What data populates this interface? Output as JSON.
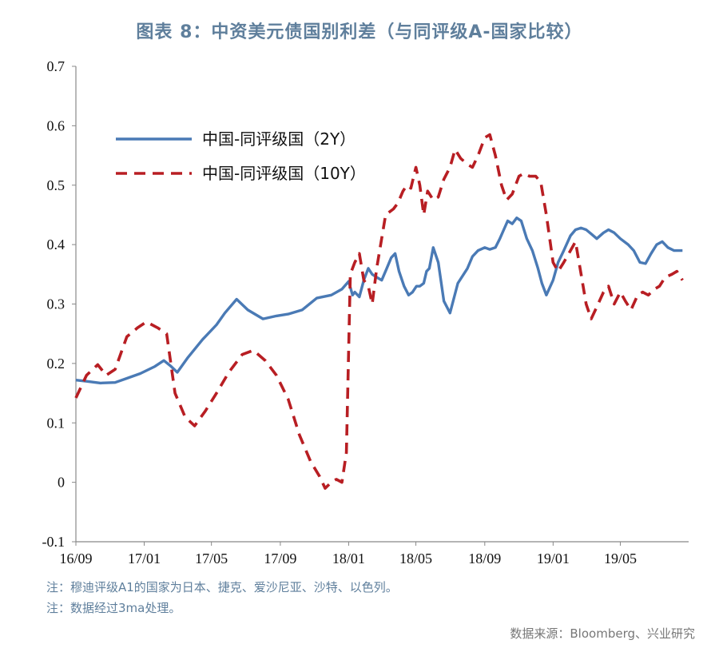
{
  "title": "图表 8：中资美元债国别利差（与同评级A-国家比较）",
  "notes": [
    "注：穆迪评级A1的国家为日本、捷克、爱沙尼亚、沙特、以色列。",
    "注：数据经过3ma处理。"
  ],
  "source": "数据来源：Bloomberg、兴业研究",
  "colors": {
    "series_2y": "#4a7ab5",
    "series_10y": "#b81e23",
    "title": "#5f7f9c"
  },
  "chart_data": {
    "type": "line",
    "title": "图表 8：中资美元债国别利差（与同评级A-国家比较）",
    "xlabel": "",
    "ylabel": "",
    "ylim": [
      -0.1,
      0.7
    ],
    "xlim": [
      "2016-09-01",
      "2019-08-31"
    ],
    "y_ticks": [
      "-0.1",
      "0",
      "0.1",
      "0.2",
      "0.3",
      "0.4",
      "0.5",
      "0.6",
      "0.7"
    ],
    "x_ticks": [
      {
        "label": "16/09",
        "date": "2016-09-01"
      },
      {
        "label": "17/01",
        "date": "2017-01-01"
      },
      {
        "label": "17/05",
        "date": "2017-05-01"
      },
      {
        "label": "17/09",
        "date": "2017-09-01"
      },
      {
        "label": "18/01",
        "date": "2018-01-01"
      },
      {
        "label": "18/05",
        "date": "2018-05-01"
      },
      {
        "label": "18/09",
        "date": "2018-09-01"
      },
      {
        "label": "19/01",
        "date": "2019-01-01"
      },
      {
        "label": "19/05",
        "date": "2019-05-01"
      }
    ],
    "grid": false,
    "legend_position": "top-left",
    "series": [
      {
        "name": "中国-同评级国（2Y）",
        "style": "solid",
        "x": [
          "2016-09-01",
          "2016-09-20",
          "2016-10-15",
          "2016-11-10",
          "2016-12-01",
          "2016-12-25",
          "2017-01-20",
          "2017-02-05",
          "2017-02-18",
          "2017-03-01",
          "2017-03-20",
          "2017-04-15",
          "2017-05-10",
          "2017-05-25",
          "2017-06-15",
          "2017-07-05",
          "2017-08-01",
          "2017-08-25",
          "2017-09-15",
          "2017-10-10",
          "2017-11-05",
          "2017-12-01",
          "2017-12-20",
          "2018-01-01",
          "2018-01-08",
          "2018-01-12",
          "2018-01-20",
          "2018-01-28",
          "2018-02-05",
          "2018-02-12",
          "2018-02-20",
          "2018-03-01",
          "2018-03-10",
          "2018-03-18",
          "2018-03-25",
          "2018-04-01",
          "2018-04-10",
          "2018-04-18",
          "2018-04-25",
          "2018-05-02",
          "2018-05-08",
          "2018-05-15",
          "2018-05-20",
          "2018-05-25",
          "2018-06-01",
          "2018-06-10",
          "2018-06-20",
          "2018-07-01",
          "2018-07-15",
          "2018-08-01",
          "2018-08-10",
          "2018-08-20",
          "2018-09-01",
          "2018-09-10",
          "2018-09-20",
          "2018-09-28",
          "2018-10-05",
          "2018-10-12",
          "2018-10-20",
          "2018-10-28",
          "2018-11-05",
          "2018-11-15",
          "2018-11-25",
          "2018-12-05",
          "2018-12-12",
          "2018-12-20",
          "2019-01-01",
          "2019-01-10",
          "2019-01-20",
          "2019-02-01",
          "2019-02-10",
          "2019-02-20",
          "2019-03-01",
          "2019-03-10",
          "2019-03-20",
          "2019-04-01",
          "2019-04-10",
          "2019-04-20",
          "2019-05-01",
          "2019-05-15",
          "2019-05-25",
          "2019-06-05",
          "2019-06-15",
          "2019-06-25",
          "2019-07-05",
          "2019-07-15",
          "2019-07-25",
          "2019-08-05",
          "2019-08-20"
        ],
        "y": [
          0.172,
          0.17,
          0.167,
          0.168,
          0.175,
          0.183,
          0.195,
          0.205,
          0.195,
          0.185,
          0.21,
          0.24,
          0.265,
          0.285,
          0.308,
          0.29,
          0.275,
          0.28,
          0.283,
          0.29,
          0.31,
          0.315,
          0.325,
          0.338,
          0.315,
          0.32,
          0.312,
          0.34,
          0.36,
          0.35,
          0.345,
          0.34,
          0.36,
          0.378,
          0.385,
          0.355,
          0.33,
          0.315,
          0.32,
          0.33,
          0.33,
          0.335,
          0.355,
          0.36,
          0.395,
          0.37,
          0.305,
          0.285,
          0.335,
          0.36,
          0.38,
          0.39,
          0.395,
          0.392,
          0.395,
          0.41,
          0.425,
          0.44,
          0.435,
          0.445,
          0.44,
          0.41,
          0.39,
          0.36,
          0.335,
          0.315,
          0.34,
          0.37,
          0.39,
          0.415,
          0.425,
          0.428,
          0.425,
          0.418,
          0.41,
          0.42,
          0.425,
          0.42,
          0.41,
          0.4,
          0.39,
          0.37,
          0.368,
          0.385,
          0.4,
          0.405,
          0.395,
          0.39,
          0.39
        ]
      },
      {
        "name": "中国-同评级国（10Y）",
        "style": "dashed",
        "x": [
          "2016-09-01",
          "2016-09-20",
          "2016-10-10",
          "2016-10-25",
          "2016-11-10",
          "2016-12-01",
          "2016-12-20",
          "2017-01-05",
          "2017-01-25",
          "2017-02-10",
          "2017-02-25",
          "2017-03-15",
          "2017-04-01",
          "2017-04-20",
          "2017-05-10",
          "2017-06-01",
          "2017-06-25",
          "2017-07-15",
          "2017-08-05",
          "2017-08-25",
          "2017-09-15",
          "2017-10-05",
          "2017-10-25",
          "2017-11-10",
          "2017-11-20",
          "2017-12-01",
          "2017-12-10",
          "2017-12-20",
          "2017-12-28",
          "2018-01-04",
          "2018-01-12",
          "2018-01-20",
          "2018-01-28",
          "2018-02-05",
          "2018-02-12",
          "2018-02-20",
          "2018-02-28",
          "2018-03-08",
          "2018-03-15",
          "2018-03-22",
          "2018-03-30",
          "2018-04-08",
          "2018-04-15",
          "2018-04-22",
          "2018-05-01",
          "2018-05-08",
          "2018-05-15",
          "2018-05-22",
          "2018-06-01",
          "2018-06-10",
          "2018-06-20",
          "2018-07-01",
          "2018-07-10",
          "2018-07-20",
          "2018-08-01",
          "2018-08-10",
          "2018-08-20",
          "2018-09-01",
          "2018-09-10",
          "2018-09-20",
          "2018-10-01",
          "2018-10-10",
          "2018-10-20",
          "2018-11-01",
          "2018-11-10",
          "2018-11-20",
          "2018-12-01",
          "2018-12-10",
          "2018-12-20",
          "2019-01-01",
          "2019-01-10",
          "2019-01-20",
          "2019-02-01",
          "2019-02-10",
          "2019-02-20",
          "2019-03-01",
          "2019-03-10",
          "2019-03-20",
          "2019-04-01",
          "2019-04-10",
          "2019-04-20",
          "2019-05-01",
          "2019-05-10",
          "2019-05-20",
          "2019-06-01",
          "2019-06-10",
          "2019-06-20",
          "2019-07-01",
          "2019-07-10",
          "2019-07-20",
          "2019-08-01",
          "2019-08-10",
          "2019-08-20"
        ],
        "y": [
          0.142,
          0.18,
          0.198,
          0.18,
          0.19,
          0.245,
          0.26,
          0.27,
          0.26,
          0.25,
          0.15,
          0.11,
          0.095,
          0.12,
          0.15,
          0.185,
          0.215,
          0.222,
          0.205,
          0.18,
          0.14,
          0.08,
          0.035,
          0.01,
          -0.01,
          0.0,
          0.005,
          0.0,
          0.05,
          0.35,
          0.37,
          0.385,
          0.34,
          0.33,
          0.3,
          0.36,
          0.405,
          0.45,
          0.455,
          0.46,
          0.47,
          0.49,
          0.5,
          0.495,
          0.53,
          0.5,
          0.45,
          0.49,
          0.475,
          0.48,
          0.51,
          0.53,
          0.56,
          0.545,
          0.535,
          0.53,
          0.55,
          0.58,
          0.585,
          0.55,
          0.5,
          0.475,
          0.485,
          0.515,
          0.52,
          0.515,
          0.515,
          0.505,
          0.45,
          0.37,
          0.355,
          0.37,
          0.39,
          0.405,
          0.35,
          0.3,
          0.275,
          0.295,
          0.32,
          0.33,
          0.3,
          0.32,
          0.305,
          0.29,
          0.315,
          0.32,
          0.315,
          0.325,
          0.33,
          0.345,
          0.35,
          0.355,
          0.34
        ]
      }
    ]
  }
}
